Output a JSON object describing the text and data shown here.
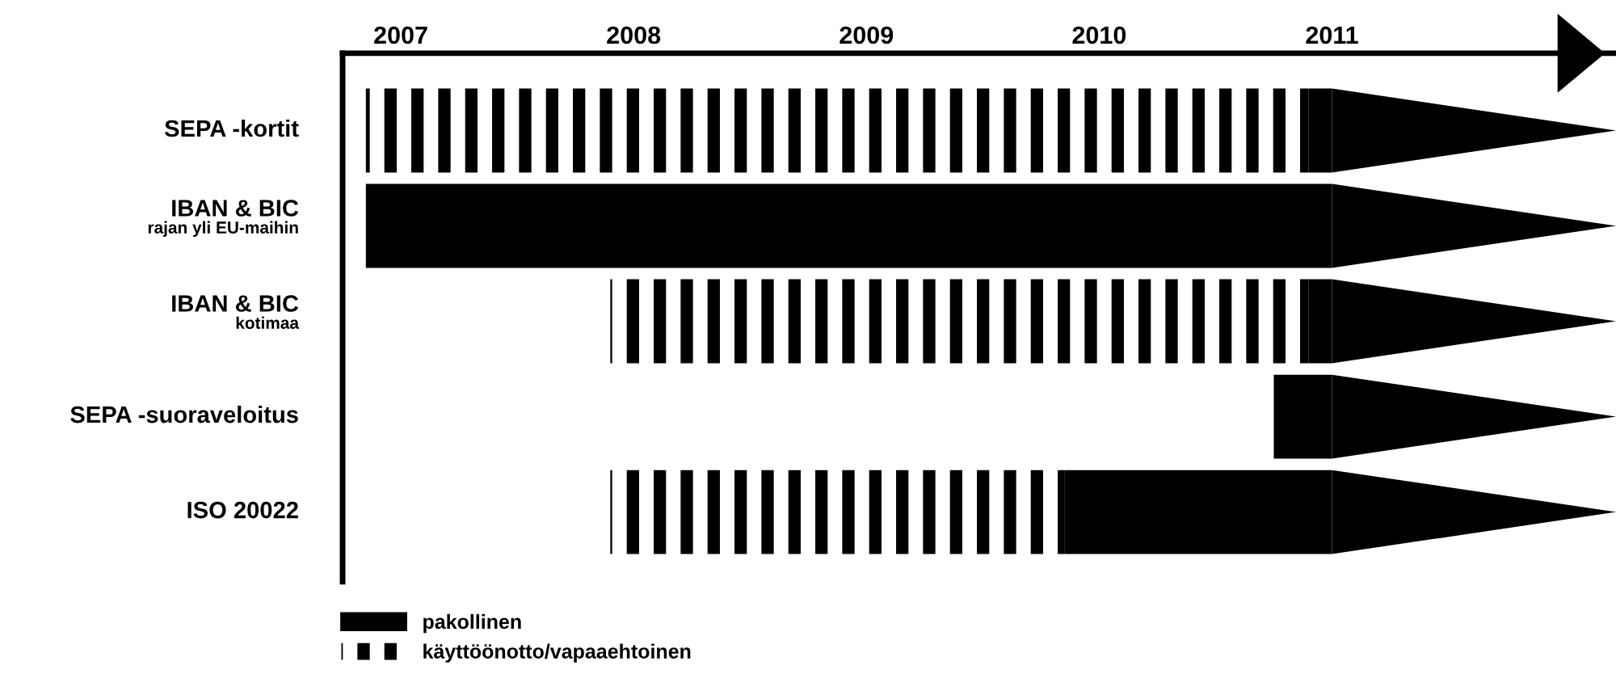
{
  "chart_data": {
    "type": "bar",
    "orientation": "horizontal",
    "stacked": true,
    "categories": [
      "SEPA -kortit",
      "IBAN & BIC\nrajan yli EU-maihin",
      "IBAN & BIC\nkotimaa",
      "SEPA -suoraveloitus",
      "ISO 20022"
    ],
    "series": [
      {
        "name": "käyttöönotto/vapaaehtoinen",
        "color": "#000000",
        "base": [
          2006.85,
          null,
          2007.9,
          null,
          2007.9
        ],
        "values": [
          4.05,
          null,
          3.0,
          null,
          1.95
        ]
      },
      {
        "name": "pakollinen",
        "color": "#000000",
        "base": [
          2010.9,
          2006.85,
          2010.9,
          2010.75,
          2009.85
        ],
        "values": [
          0.1,
          4.15,
          0.1,
          0.25,
          1.15
        ]
      }
    ],
    "xlim": [
      2006.75,
      2012.22
    ],
    "xticks": [
      2007,
      2008,
      2009,
      2010,
      2011
    ],
    "grid": false,
    "legend": "bottom left"
  }
}
